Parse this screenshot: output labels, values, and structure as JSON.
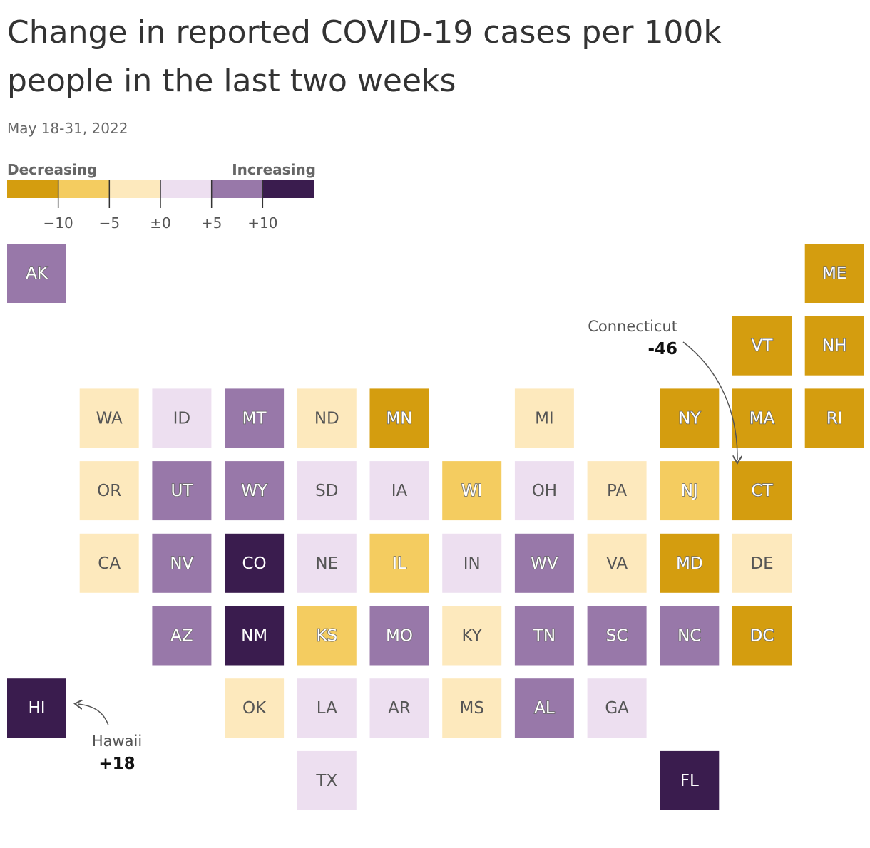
{
  "header": {
    "title_line1": "Change in reported COVID-19 cases per 100k",
    "title_line2": "people in the last two weeks",
    "subtitle": "May 18-31, 2022"
  },
  "legend": {
    "low_label": "Decreasing",
    "high_label": "Increasing",
    "colors": [
      "#d49d0f",
      "#f4cc60",
      "#fde9bd",
      "#eddff0",
      "#9878a9",
      "#3a1c4e"
    ],
    "ticks": [
      "−10",
      "−5",
      "±0",
      "+5",
      "+10"
    ]
  },
  "tiles": [
    {
      "label": "AK",
      "color": "#9878a9"
    },
    {
      "label": "ME",
      "color": "#d49d0f"
    },
    {
      "label": "VT",
      "color": "#d49d0f"
    },
    {
      "label": "NH",
      "color": "#d49d0f"
    },
    {
      "label": "WA",
      "color": "#fde9bd"
    },
    {
      "label": "ID",
      "color": "#eddff0"
    },
    {
      "label": "MT",
      "color": "#9878a9"
    },
    {
      "label": "ND",
      "color": "#fde9bd"
    },
    {
      "label": "MN",
      "color": "#d49d0f"
    },
    {
      "label": "MI",
      "color": "#fde9bd"
    },
    {
      "label": "NY",
      "color": "#d49d0f"
    },
    {
      "label": "MA",
      "color": "#d49d0f"
    },
    {
      "label": "RI",
      "color": "#d49d0f"
    },
    {
      "label": "OR",
      "color": "#fde9bd"
    },
    {
      "label": "UT",
      "color": "#9878a9"
    },
    {
      "label": "WY",
      "color": "#9878a9"
    },
    {
      "label": "SD",
      "color": "#eddff0"
    },
    {
      "label": "IA",
      "color": "#eddff0"
    },
    {
      "label": "WI",
      "color": "#f4cc60"
    },
    {
      "label": "OH",
      "color": "#eddff0"
    },
    {
      "label": "PA",
      "color": "#fde9bd"
    },
    {
      "label": "NJ",
      "color": "#f4cc60"
    },
    {
      "label": "CT",
      "color": "#d49d0f"
    },
    {
      "label": "CA",
      "color": "#fde9bd"
    },
    {
      "label": "NV",
      "color": "#9878a9"
    },
    {
      "label": "CO",
      "color": "#3a1c4e"
    },
    {
      "label": "NE",
      "color": "#eddff0"
    },
    {
      "label": "IL",
      "color": "#f4cc60"
    },
    {
      "label": "IN",
      "color": "#eddff0"
    },
    {
      "label": "WV",
      "color": "#9878a9"
    },
    {
      "label": "VA",
      "color": "#fde9bd"
    },
    {
      "label": "MD",
      "color": "#d49d0f"
    },
    {
      "label": "DE",
      "color": "#fde9bd"
    },
    {
      "label": "AZ",
      "color": "#9878a9"
    },
    {
      "label": "NM",
      "color": "#3a1c4e"
    },
    {
      "label": "KS",
      "color": "#f4cc60"
    },
    {
      "label": "MO",
      "color": "#9878a9"
    },
    {
      "label": "KY",
      "color": "#fde9bd"
    },
    {
      "label": "TN",
      "color": "#9878a9"
    },
    {
      "label": "SC",
      "color": "#9878a9"
    },
    {
      "label": "NC",
      "color": "#9878a9"
    },
    {
      "label": "DC",
      "color": "#d49d0f"
    },
    {
      "label": "HI",
      "color": "#3a1c4e"
    },
    {
      "label": "OK",
      "color": "#fde9bd"
    },
    {
      "label": "LA",
      "color": "#eddff0"
    },
    {
      "label": "AR",
      "color": "#eddff0"
    },
    {
      "label": "MS",
      "color": "#fde9bd"
    },
    {
      "label": "AL",
      "color": "#9878a9"
    },
    {
      "label": "GA",
      "color": "#eddff0"
    },
    {
      "label": "TX",
      "color": "#eddff0"
    },
    {
      "label": "FL",
      "color": "#3a1c4e"
    }
  ],
  "annotations": [
    {
      "name": "Connecticut",
      "value": "-46"
    },
    {
      "name": "Hawaii",
      "value": "+18"
    }
  ]
}
